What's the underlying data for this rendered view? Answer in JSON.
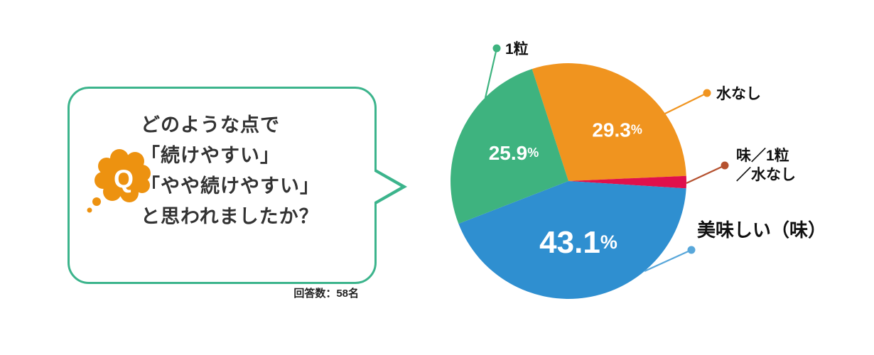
{
  "question": {
    "icon_letter": "Q",
    "icon_color": "#ed9210",
    "bubble_border_color": "#3cb48c",
    "lines": [
      "どのような点で",
      "「続けやすい」",
      "「やや続けやすい」",
      "と思われましたか？"
    ],
    "respondents": "回答数：58名"
  },
  "chart_data": {
    "type": "pie",
    "title": "",
    "unit": "%",
    "start_angle_deg": -18,
    "clockwise": true,
    "legend_position": "callouts",
    "slices": [
      {
        "label": "水なし",
        "label_lines": [
          "水なし"
        ],
        "value": 29.3,
        "color": "#f0941f",
        "leader_color": "#f0941f",
        "show_pct": true
      },
      {
        "label": "味／1粒／水なし",
        "label_lines": [
          "味／1粒",
          "／水なし"
        ],
        "value": 1.7,
        "color": "#e0104c",
        "leader_color": "#b5512f",
        "show_pct": false
      },
      {
        "label": "美味しい（味）",
        "label_lines": [
          "美味しい（味）"
        ],
        "value": 43.1,
        "color": "#2f8fd0",
        "leader_color": "#58a7da",
        "show_pct": true
      },
      {
        "label": "1粒",
        "label_lines": [
          "1粒"
        ],
        "value": 25.9,
        "color": "#3eb37f",
        "leader_color": "#3eb37f",
        "show_pct": true
      }
    ]
  }
}
